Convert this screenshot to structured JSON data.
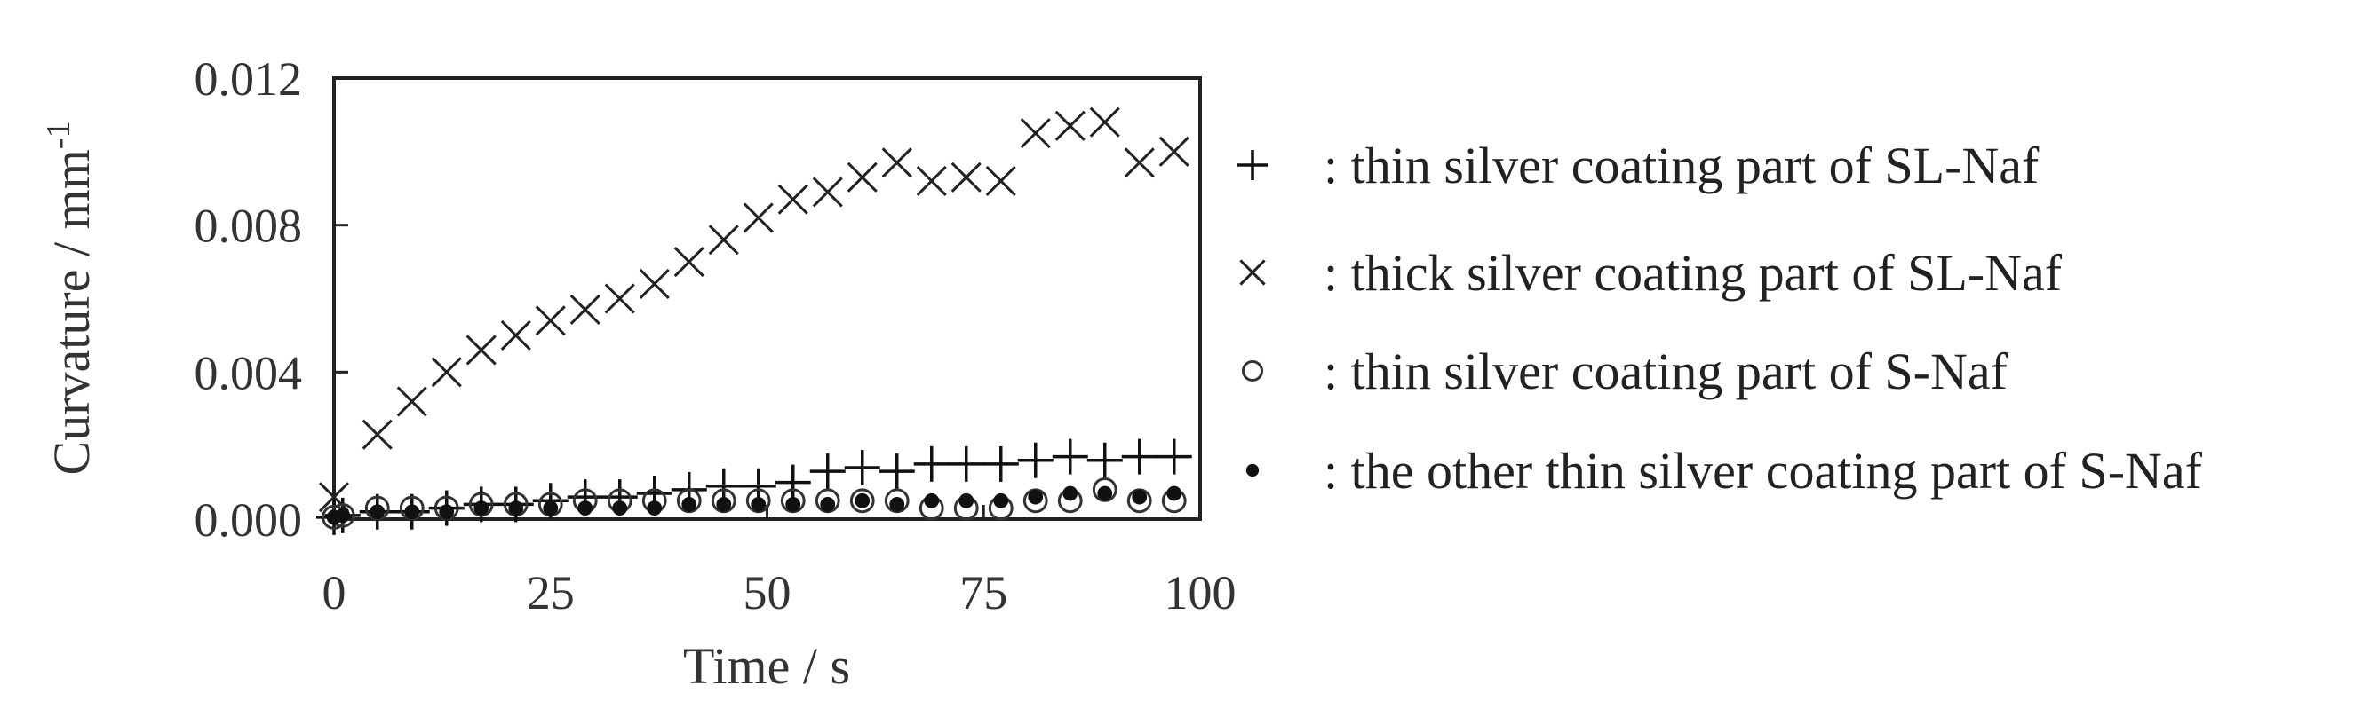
{
  "chart_data": {
    "type": "scatter",
    "xlabel": "Time / s",
    "ylabel": "Curvature / mm",
    "ylabel_sup": "-1",
    "xlim": [
      0,
      100
    ],
    "ylim": [
      0,
      0.012
    ],
    "xticks": [
      "0",
      "25",
      "50",
      "75",
      "100"
    ],
    "yticks": [
      "0.000",
      "0.004",
      "0.008",
      "0.012"
    ],
    "legend_position": "right",
    "series": [
      {
        "name": ": thin silver coating part of SL-Naf",
        "marker": "plus",
        "color": "#111111",
        "x": [
          0,
          1,
          5,
          9,
          13,
          17,
          21,
          25,
          29,
          33,
          37,
          41,
          45,
          49,
          53,
          57,
          61,
          65,
          69,
          73,
          77,
          81,
          85,
          89,
          93,
          97
        ],
        "y": [
          5e-05,
          0.0001,
          0.0002,
          0.0002,
          0.0003,
          0.0004,
          0.0004,
          0.0005,
          0.0006,
          0.0006,
          0.0007,
          0.0008,
          0.0009,
          0.0009,
          0.001,
          0.0013,
          0.0014,
          0.0013,
          0.0015,
          0.0015,
          0.0015,
          0.0016,
          0.0017,
          0.0016,
          0.0017,
          0.0017
        ]
      },
      {
        "name": ": thick silver coating part of SL-Naf",
        "marker": "cross",
        "color": "#222222",
        "x": [
          0,
          5,
          9,
          13,
          17,
          21,
          25,
          29,
          33,
          37,
          41,
          45,
          49,
          53,
          57,
          61,
          65,
          69,
          73,
          77,
          81,
          85,
          89,
          93,
          97
        ],
        "y": [
          0.0006,
          0.0023,
          0.0032,
          0.004,
          0.0046,
          0.005,
          0.0054,
          0.0057,
          0.006,
          0.0064,
          0.007,
          0.0076,
          0.0082,
          0.0087,
          0.0089,
          0.0093,
          0.0097,
          0.0092,
          0.0093,
          0.0092,
          0.0105,
          0.0107,
          0.0108,
          0.0097,
          0.01
        ]
      },
      {
        "name": ": thin silver coating part of S-Naf",
        "marker": "circle",
        "color": "#333333",
        "x": [
          0,
          1,
          5,
          9,
          13,
          17,
          21,
          25,
          29,
          33,
          37,
          41,
          45,
          49,
          53,
          57,
          61,
          65,
          69,
          73,
          77,
          81,
          85,
          89,
          93,
          97
        ],
        "y": [
          5e-05,
          0.0001,
          0.0003,
          0.0003,
          0.0003,
          0.0004,
          0.0004,
          0.0004,
          0.0005,
          0.0005,
          0.0005,
          0.0005,
          0.0005,
          0.0005,
          0.0005,
          0.0005,
          0.0005,
          0.0005,
          0.0003,
          0.0003,
          0.0003,
          0.0005,
          0.0005,
          0.0008,
          0.0005,
          0.0005
        ]
      },
      {
        "name": ": the other thin silver coating part of S-Naf",
        "marker": "dot",
        "color": "#111111",
        "x": [
          0,
          1,
          5,
          9,
          13,
          17,
          21,
          25,
          29,
          33,
          37,
          41,
          45,
          49,
          53,
          57,
          61,
          65,
          69,
          73,
          77,
          81,
          85,
          89,
          93,
          97
        ],
        "y": [
          5e-05,
          0.0001,
          0.0002,
          0.0002,
          0.0002,
          0.0003,
          0.0003,
          0.0003,
          0.0003,
          0.0003,
          0.0003,
          0.0004,
          0.0004,
          0.0004,
          0.0004,
          0.0004,
          0.0005,
          0.0004,
          0.0005,
          0.0005,
          0.0005,
          0.0006,
          0.0007,
          0.0007,
          0.0006,
          0.0007
        ]
      }
    ]
  }
}
